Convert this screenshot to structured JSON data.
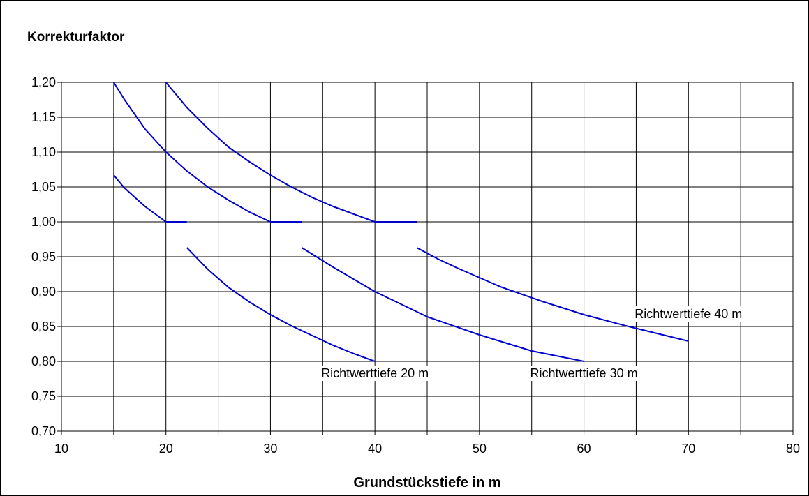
{
  "chart_data": {
    "type": "line",
    "title": "",
    "ylabel": "Korrekturfaktor",
    "xlabel": "Grundstückstiefe in  m",
    "xlim": [
      10,
      80
    ],
    "ylim": [
      0.7,
      1.2
    ],
    "x_ticks": [
      10,
      15,
      20,
      25,
      30,
      35,
      40,
      45,
      50,
      55,
      60,
      65,
      70,
      75,
      80
    ],
    "x_tick_labels": [
      "10",
      "20",
      "30",
      "40",
      "50",
      "60",
      "70",
      "80"
    ],
    "x_tick_label_values": [
      10,
      20,
      30,
      40,
      50,
      60,
      70,
      80
    ],
    "y_ticks": [
      0.7,
      0.75,
      0.8,
      0.85,
      0.9,
      0.95,
      1.0,
      1.05,
      1.1,
      1.15,
      1.2
    ],
    "y_tick_labels": [
      "0,70",
      "0,75",
      "0,80",
      "0,85",
      "0,90",
      "0,95",
      "1,00",
      "1,05",
      "1,10",
      "1,15",
      "1,20"
    ],
    "grid": true,
    "line_color": "#0000cc",
    "annotations": [
      {
        "text": "Richtwerttiefe 20 m",
        "x": 40,
        "y": 0.785
      },
      {
        "text": "Richtwerttiefe 30 m",
        "x": 60,
        "y": 0.785
      },
      {
        "text": "Richtwerttiefe 40 m",
        "x": 70,
        "y": 0.87
      }
    ],
    "series": [
      {
        "x": [
          15,
          16,
          18,
          20,
          22
        ],
        "y": [
          1.067,
          1.049,
          1.022,
          1.0,
          1.0
        ]
      },
      {
        "x": [
          22,
          24,
          26,
          28,
          30,
          32,
          34,
          36,
          38,
          40
        ],
        "y": [
          0.963,
          0.932,
          0.906,
          0.885,
          0.867,
          0.851,
          0.837,
          0.823,
          0.811,
          0.8
        ]
      },
      {
        "x": [
          15,
          16,
          18,
          20,
          22,
          24,
          26,
          28,
          30,
          33
        ],
        "y": [
          1.2,
          1.176,
          1.133,
          1.1,
          1.073,
          1.05,
          1.031,
          1.014,
          1.0,
          1.0
        ]
      },
      {
        "x": [
          33,
          36,
          40,
          45,
          50,
          55,
          60
        ],
        "y": [
          0.963,
          0.935,
          0.9,
          0.864,
          0.838,
          0.815,
          0.8
        ]
      },
      {
        "x": [
          20,
          22,
          24,
          26,
          28,
          30,
          32,
          34,
          36,
          38,
          40,
          44
        ],
        "y": [
          1.2,
          1.164,
          1.134,
          1.107,
          1.086,
          1.067,
          1.05,
          1.035,
          1.022,
          1.011,
          1.0,
          1.0
        ]
      },
      {
        "x": [
          44,
          46,
          48,
          50,
          52,
          56,
          60,
          64,
          70
        ],
        "y": [
          0.963,
          0.947,
          0.933,
          0.92,
          0.907,
          0.886,
          0.867,
          0.851,
          0.829
        ]
      }
    ]
  }
}
